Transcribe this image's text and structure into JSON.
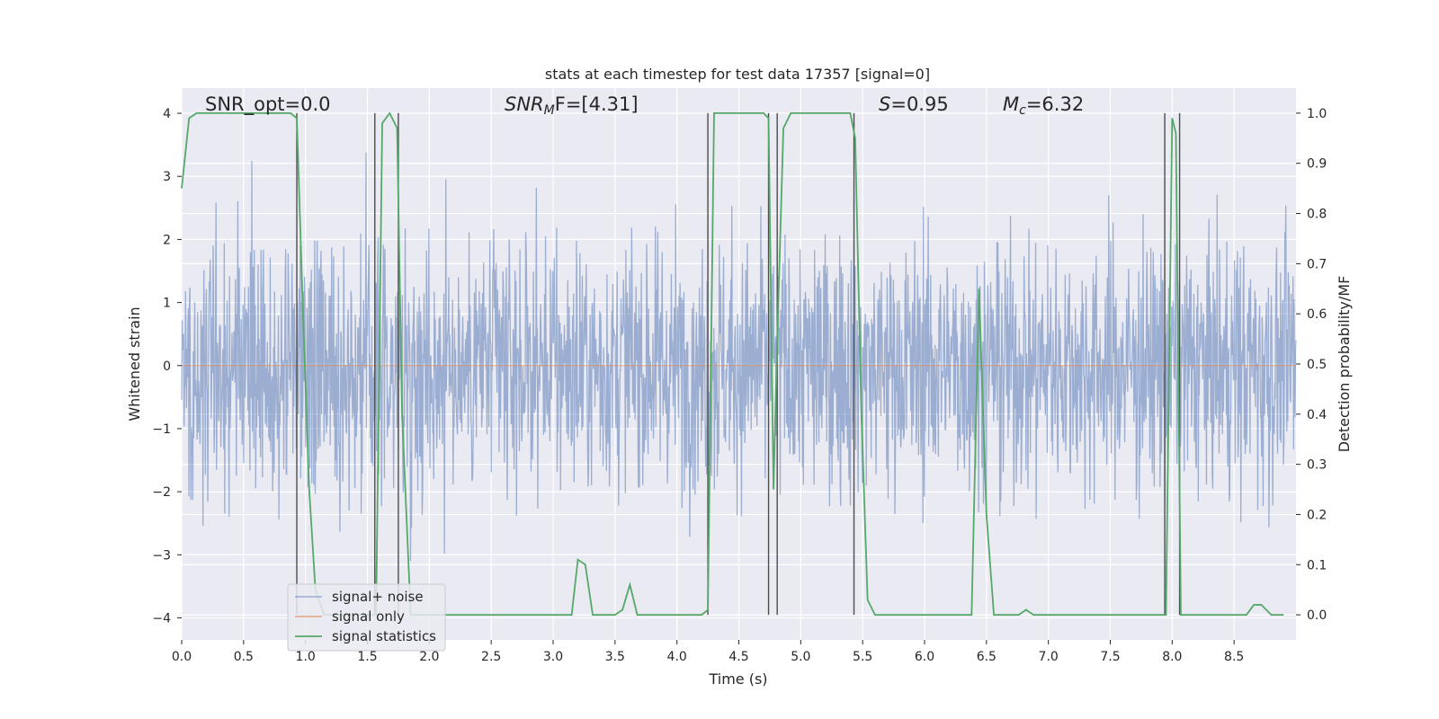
{
  "chart_data": {
    "type": "line",
    "title": "stats at each timestep for test data 17357 [signal=0]",
    "xlabel": "Time (s)",
    "ylabel": "Whitened strain",
    "y2label": "Detection probability/MF",
    "xlim": [
      0,
      9.0
    ],
    "ylim": [
      -4.35,
      4.4
    ],
    "y2lim": [
      -0.05,
      1.05
    ],
    "xticks": [
      0.0,
      0.5,
      1.0,
      1.5,
      2.0,
      2.5,
      3.0,
      3.5,
      4.0,
      4.5,
      5.0,
      5.5,
      6.0,
      6.5,
      7.0,
      7.5,
      8.0,
      8.5
    ],
    "xtick_labels": [
      "0.0",
      "0.5",
      "1.0",
      "1.5",
      "2.0",
      "2.5",
      "3.0",
      "3.5",
      "4.0",
      "4.5",
      "5.0",
      "5.5",
      "6.0",
      "6.5",
      "7.0",
      "7.5",
      "8.0",
      "8.5"
    ],
    "yticks": [
      -4,
      -3,
      -2,
      -1,
      0,
      1,
      2,
      3,
      4
    ],
    "ytick_labels": [
      "−4",
      "−3",
      "−2",
      "−1",
      "0",
      "1",
      "2",
      "3",
      "4"
    ],
    "y2ticks": [
      0.0,
      0.1,
      0.2,
      0.3,
      0.4,
      0.5,
      0.6,
      0.7,
      0.8,
      0.9,
      1.0
    ],
    "y2tick_labels": [
      "0.0",
      "0.1",
      "0.2",
      "0.3",
      "0.4",
      "0.5",
      "0.6",
      "0.7",
      "0.8",
      "0.9",
      "1.0"
    ],
    "grid": true,
    "legend_position": "lower-left",
    "annotations": {
      "snr_opt": "SNR_opt=0.0",
      "snr_mf_main": "SNR",
      "snr_mf_sub": "M",
      "snr_mf_rest": "F=[4.31]",
      "s_var": "S",
      "s_rest": "=0.95",
      "mc_var": "M",
      "mc_sub": "c",
      "mc_rest": "=6.32"
    },
    "series": [
      {
        "name": "signal+ noise",
        "axis": "left",
        "color": "#4c72b0",
        "description": "whitened noise, amplitude approx ±2.5 with peaks to ±3.7"
      },
      {
        "name": "signal only",
        "axis": "left",
        "color": "#dd8452",
        "x": [
          0.0,
          9.0
        ],
        "y": [
          0.0,
          0.0
        ]
      },
      {
        "name": "signal statistics",
        "axis": "right",
        "color": "#55a868",
        "x": [
          0.0,
          0.06,
          0.12,
          0.2,
          0.4,
          0.6,
          0.8,
          0.88,
          0.93,
          0.98,
          1.03,
          1.08,
          1.15,
          1.25,
          1.4,
          1.5,
          1.57,
          1.62,
          1.68,
          1.74,
          1.78,
          1.85,
          2.0,
          2.5,
          3.0,
          3.1,
          3.15,
          3.2,
          3.26,
          3.32,
          3.4,
          3.5,
          3.56,
          3.62,
          3.68,
          3.74,
          3.85,
          4.0,
          4.2,
          4.25,
          4.3,
          4.4,
          4.5,
          4.6,
          4.7,
          4.74,
          4.78,
          4.81,
          4.86,
          4.92,
          5.0,
          5.2,
          5.4,
          5.44,
          5.49,
          5.54,
          5.6,
          5.7,
          6.0,
          6.38,
          6.44,
          6.5,
          6.56,
          6.64,
          6.7,
          6.76,
          6.82,
          6.88,
          7.0,
          7.5,
          7.9,
          7.95,
          8.0,
          8.03,
          8.07,
          8.1,
          8.14,
          8.25,
          8.35,
          8.42,
          8.5,
          8.6,
          8.66,
          8.72,
          8.8,
          8.9
        ],
        "y": [
          0.85,
          0.99,
          1.0,
          1.0,
          1.0,
          1.0,
          1.0,
          1.0,
          0.99,
          0.6,
          0.25,
          0.05,
          0.0,
          0.0,
          0.0,
          0.0,
          0.0,
          0.98,
          1.0,
          0.97,
          0.4,
          0.0,
          0.0,
          0.0,
          0.0,
          0.0,
          0.0,
          0.11,
          0.1,
          0.0,
          0.0,
          0.0,
          0.01,
          0.06,
          0.0,
          0.0,
          0.0,
          0.0,
          0.0,
          0.01,
          1.0,
          1.0,
          1.0,
          1.0,
          1.0,
          0.99,
          0.25,
          0.55,
          0.97,
          1.0,
          1.0,
          1.0,
          1.0,
          0.95,
          0.4,
          0.03,
          0.0,
          0.0,
          0.0,
          0.0,
          0.65,
          0.2,
          0.0,
          0.0,
          0.0,
          0.0,
          0.01,
          0.0,
          0.0,
          0.0,
          0.0,
          0.0,
          0.99,
          0.96,
          0.0,
          0.0,
          0.0,
          0.0,
          0.0,
          0.0,
          0.0,
          0.0,
          0.02,
          0.02,
          0.0,
          0.0
        ]
      }
    ],
    "detection_lines_x": [
      0.93,
      1.56,
      1.75,
      4.25,
      4.74,
      4.81,
      5.43,
      7.94,
      8.06
    ]
  }
}
